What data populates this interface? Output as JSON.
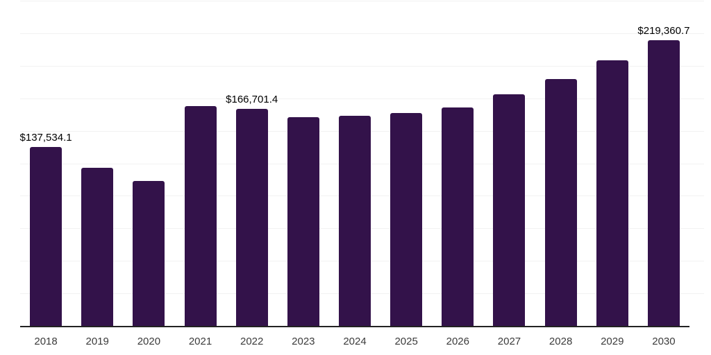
{
  "chart_data": {
    "type": "bar",
    "title": "",
    "xlabel": "",
    "ylabel": "",
    "categories": [
      "2018",
      "2019",
      "2020",
      "2021",
      "2022",
      "2023",
      "2024",
      "2025",
      "2026",
      "2027",
      "2028",
      "2029",
      "2030"
    ],
    "values": [
      137534.1,
      121500,
      111400,
      169000,
      166701.4,
      160400,
      161500,
      163600,
      167900,
      178000,
      189800,
      204200,
      219360.7
    ],
    "data_labels": [
      "$137,534.1",
      "",
      "",
      "",
      "$166,701.4",
      "",
      "",
      "",
      "",
      "",
      "",
      "",
      "$219,360.7"
    ],
    "ylim": [
      0,
      250000
    ],
    "gridline_interval": 25000,
    "grid": true,
    "legend": false,
    "colors": {
      "bar": "#33124A",
      "axis": "#222222",
      "gridline": "#f2f2f2",
      "data_label": "#000000",
      "tick_label": "#3b3b3b",
      "background": "#ffffff"
    }
  }
}
